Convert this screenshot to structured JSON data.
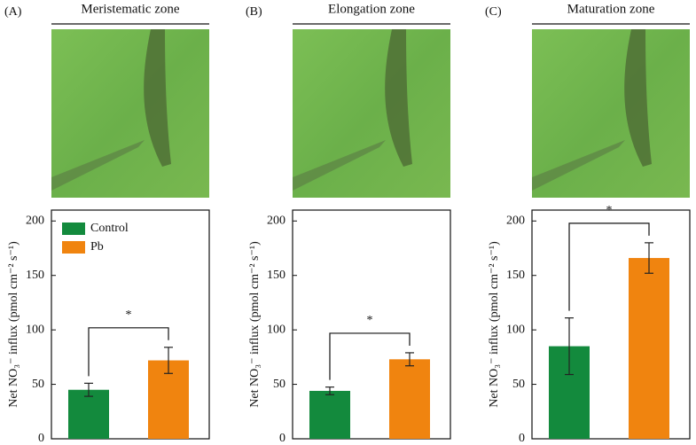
{
  "legend": [
    {
      "name": "Control",
      "color": "#138a3d"
    },
    {
      "name": "Pb",
      "color": "#f0840f"
    }
  ],
  "chart_data": [
    {
      "type": "bar",
      "panel": "(A)",
      "title": "Meristematic zone",
      "y_label": "Net NO₃⁻ influx (pmol cm⁻² s⁻¹)",
      "values": [
        45,
        72
      ],
      "errors": [
        6,
        12
      ],
      "annotation": "*",
      "ylim": [
        0,
        210
      ],
      "yticks": [
        0,
        50,
        100,
        150,
        200
      ]
    },
    {
      "type": "bar",
      "panel": "(B)",
      "title": "Elongation zone",
      "y_label": "Net NO₃⁻ influx (pmol cm⁻² s⁻¹)",
      "values": [
        44,
        73
      ],
      "errors": [
        3.5,
        6
      ],
      "annotation": "*",
      "ylim": [
        0,
        210
      ],
      "yticks": [
        0,
        50,
        100,
        150,
        200
      ]
    },
    {
      "type": "bar",
      "panel": "(C)",
      "title": "Maturation zone",
      "y_label": "Net NO₃⁻ influx (pmol cm⁻² s⁻¹)",
      "values": [
        85,
        166
      ],
      "errors": [
        26,
        14
      ],
      "annotation": "*",
      "ylim": [
        0,
        210
      ],
      "yticks": [
        0,
        50,
        100,
        150,
        200
      ]
    }
  ]
}
